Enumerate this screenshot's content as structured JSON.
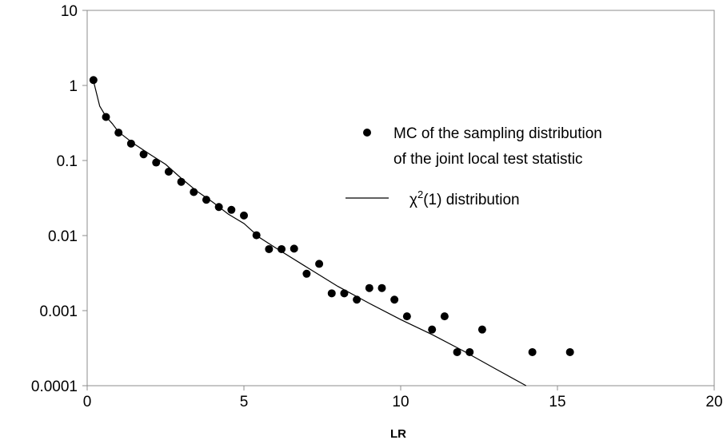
{
  "chart_data": {
    "type": "scatter",
    "title": "",
    "xlabel": "LR",
    "ylabel": "",
    "xlim": [
      0,
      20
    ],
    "ylim": [
      0.0001,
      10
    ],
    "yscale": "log",
    "grid": false,
    "legend_position": "right",
    "x_tick_labels": [
      "0",
      "5",
      "10",
      "15",
      "20"
    ],
    "y_tick_labels": [
      "10",
      "1",
      "0.1",
      "0.01",
      "0.001",
      "0.0001"
    ],
    "series": [
      {
        "name_lines": [
          "MC of the sampling distribution",
          "of the joint local test statistic"
        ],
        "type": "scatter",
        "color": "#000000",
        "points": [
          [
            0.2,
            1.18
          ],
          [
            0.6,
            0.38
          ],
          [
            1.0,
            0.235
          ],
          [
            1.4,
            0.168
          ],
          [
            1.8,
            0.121
          ],
          [
            2.2,
            0.094
          ],
          [
            2.6,
            0.071
          ],
          [
            3.0,
            0.052
          ],
          [
            3.4,
            0.038
          ],
          [
            3.8,
            0.03
          ],
          [
            4.2,
            0.024
          ],
          [
            4.6,
            0.022
          ],
          [
            5.0,
            0.0185
          ],
          [
            5.4,
            0.0101
          ],
          [
            5.8,
            0.0066
          ],
          [
            6.2,
            0.0066
          ],
          [
            6.6,
            0.0067
          ],
          [
            7.0,
            0.0031
          ],
          [
            7.4,
            0.0042
          ],
          [
            7.8,
            0.0017
          ],
          [
            8.2,
            0.0017
          ],
          [
            8.6,
            0.0014
          ],
          [
            9.0,
            0.002
          ],
          [
            9.4,
            0.002
          ],
          [
            9.8,
            0.0014
          ],
          [
            10.2,
            0.00084
          ],
          [
            11.0,
            0.00056
          ],
          [
            11.4,
            0.00084
          ],
          [
            11.8,
            0.00028
          ],
          [
            12.2,
            0.00028
          ],
          [
            12.6,
            0.00056
          ],
          [
            14.2,
            0.00028
          ],
          [
            15.4,
            0.00028
          ]
        ]
      },
      {
        "name_prefix": "χ",
        "name_superscript": "2",
        "name_suffix": "(1) distribution",
        "type": "line",
        "color": "#000000",
        "points": [
          [
            0.2,
            1.15
          ],
          [
            0.4,
            0.53
          ],
          [
            0.6,
            0.385
          ],
          [
            0.8,
            0.31
          ],
          [
            1.0,
            0.24
          ],
          [
            1.5,
            0.166
          ],
          [
            2.0,
            0.121
          ],
          [
            2.5,
            0.089
          ],
          [
            3.0,
            0.058
          ],
          [
            3.5,
            0.039
          ],
          [
            4.0,
            0.028
          ],
          [
            4.5,
            0.0193
          ],
          [
            5.0,
            0.0145
          ],
          [
            5.5,
            0.0094
          ],
          [
            6.0,
            0.0069
          ],
          [
            7.0,
            0.0038
          ],
          [
            8.0,
            0.0021
          ],
          [
            9.0,
            0.00125
          ],
          [
            10.0,
            0.00076
          ],
          [
            11.0,
            0.00048
          ],
          [
            12.0,
            0.00029
          ],
          [
            13.0,
            0.00017
          ],
          [
            14.0,
            0.0001
          ]
        ]
      }
    ]
  }
}
